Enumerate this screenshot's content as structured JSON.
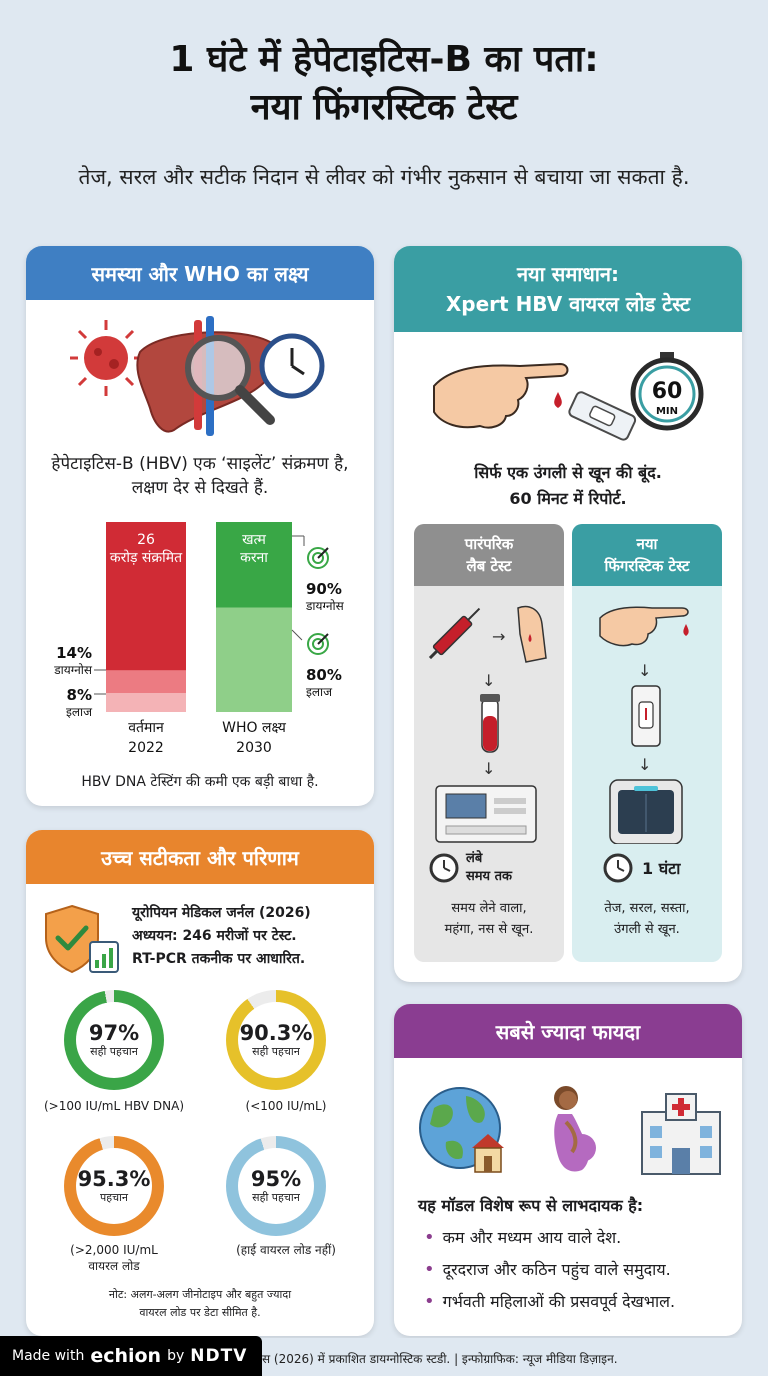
{
  "header": {
    "title_line1": "1 घंटे में हेपेटाइटिस-B का पता:",
    "title_line2": "नया फिंगरस्टिक टेस्ट",
    "subtitle": "तेज, सरल और सटीक निदान से लीवर को गंभीर नुकसान से बचाया जा सकता है."
  },
  "problem": {
    "heading": "समस्या और WHO का लक्ष्य",
    "description": "हेपेटाइटिस-B (HBV) एक ‘साइलेंट’ संक्रमण है, लक्षण देर से दिखते हैं.",
    "note": "HBV DNA टेस्टिंग की कमी एक बड़ी बाधा है.",
    "chart_data": {
      "type": "bar",
      "categories": [
        "वर्तमान 2022",
        "WHO लक्ष्य 2030"
      ],
      "bars": [
        {
          "top_label": "26 करोड़ संक्रमित",
          "x_label_line1": "वर्तमान",
          "x_label_line2": "2022",
          "diagnosed_label": "14% डायग्नोस",
          "treated_label": "8% इलाज",
          "diagnosed_pct": 14,
          "treated_pct": 8
        },
        {
          "top_label": "खत्म करना",
          "x_label_line1": "WHO लक्ष्य",
          "x_label_line2": "2030",
          "diagnosed_label": "90% डायग्नोस",
          "treated_label": "80% इलाज",
          "diagnosed_pct": 90,
          "treated_pct": 80
        }
      ],
      "colors": {
        "current": "#d02b35",
        "current_light": "#ec7b82",
        "current_lighter": "#f4b3b6",
        "target": "#39a746",
        "target_light": "#8fcf89"
      }
    }
  },
  "solution": {
    "heading_line1": "नया समाधान:",
    "heading_line2": "Xpert HBV वायरल लोड टेस्ट",
    "timer_value": "60",
    "timer_unit": "MIN",
    "description_line1": "सिर्फ एक उंगली से खून की बूंद.",
    "description_line2": "60 मिनट में रिपोर्ट.",
    "traditional": {
      "heading_line1": "पारंपरिक",
      "heading_line2": "लैब टेस्ट",
      "time_line1": "लंबे",
      "time_line2": "समय तक",
      "desc_line1": "समय लेने वाला,",
      "desc_line2": "महंगा, नस से खून."
    },
    "new": {
      "heading_line1": "नया",
      "heading_line2": "फिंगरस्टिक टेस्ट",
      "time": "1 घंटा",
      "desc_line1": "तेज, सरल, सस्ता,",
      "desc_line2": "उंगली से खून."
    }
  },
  "accuracy": {
    "heading": "उच्च सटीकता और परिणाम",
    "study_line1": "यूरोपियन मेडिकल जर्नल (2026)",
    "study_line2": "अध्ययन: 246 मरीजों पर टेस्ट.",
    "study_line3": "RT-PCR तकनीक पर आधारित.",
    "rings": [
      {
        "pct_value": 97,
        "pct": "97%",
        "label": "सही पहचान",
        "caption_line1": "(>100 IU/mL HBV DNA)",
        "caption_line2": "",
        "color": "#3aa547"
      },
      {
        "pct_value": 90.3,
        "pct": "90.3%",
        "label": "सही पहचान",
        "caption_line1": "(<100 IU/mL)",
        "caption_line2": "",
        "color": "#e6c12a"
      },
      {
        "pct_value": 95.3,
        "pct": "95.3%",
        "label": "पहचान",
        "caption_line1": "(>2,000 IU/mL",
        "caption_line2": "वायरल लोड",
        "color": "#e98a2c"
      },
      {
        "pct_value": 95,
        "pct": "95%",
        "label": "सही पहचान",
        "caption_line1": "(हाई वायरल लोड नहीं)",
        "caption_line2": "",
        "color": "#8fc3dd"
      }
    ],
    "note_line1": "नोट: अलग-अलग जीनोटाइप और बहुत ज्यादा",
    "note_line2": "वायरल लोड पर डेटा सीमित है."
  },
  "benefit": {
    "heading": "सबसे ज्यादा फायदा",
    "intro": "यह मॉडल विशेष रूप से लाभदायक है:",
    "bullets": [
      "कम और मध्यम आय वाले देश.",
      "दूरदराज और कठिन पहुंच वाले समुदाय.",
      "गर्भवती महिलाओं की प्रसवपूर्व देखभाल."
    ]
  },
  "footer": {
    "source": "स (2026) में प्रकाशित डायग्नोस्टिक स्टडी. | इन्फोग्राफिक: न्यूज मीडिया डिज़ाइन.",
    "badge_made": "Made with",
    "badge_brand": "echion",
    "badge_by": "by",
    "badge_partner": "NDTV"
  },
  "colors": {
    "blue_head": "#3f7fc3",
    "teal_head": "#3a9ea3",
    "orange_head": "#e8852d",
    "purple_head": "#8a3d91",
    "gray_head": "#8f8f8f"
  }
}
